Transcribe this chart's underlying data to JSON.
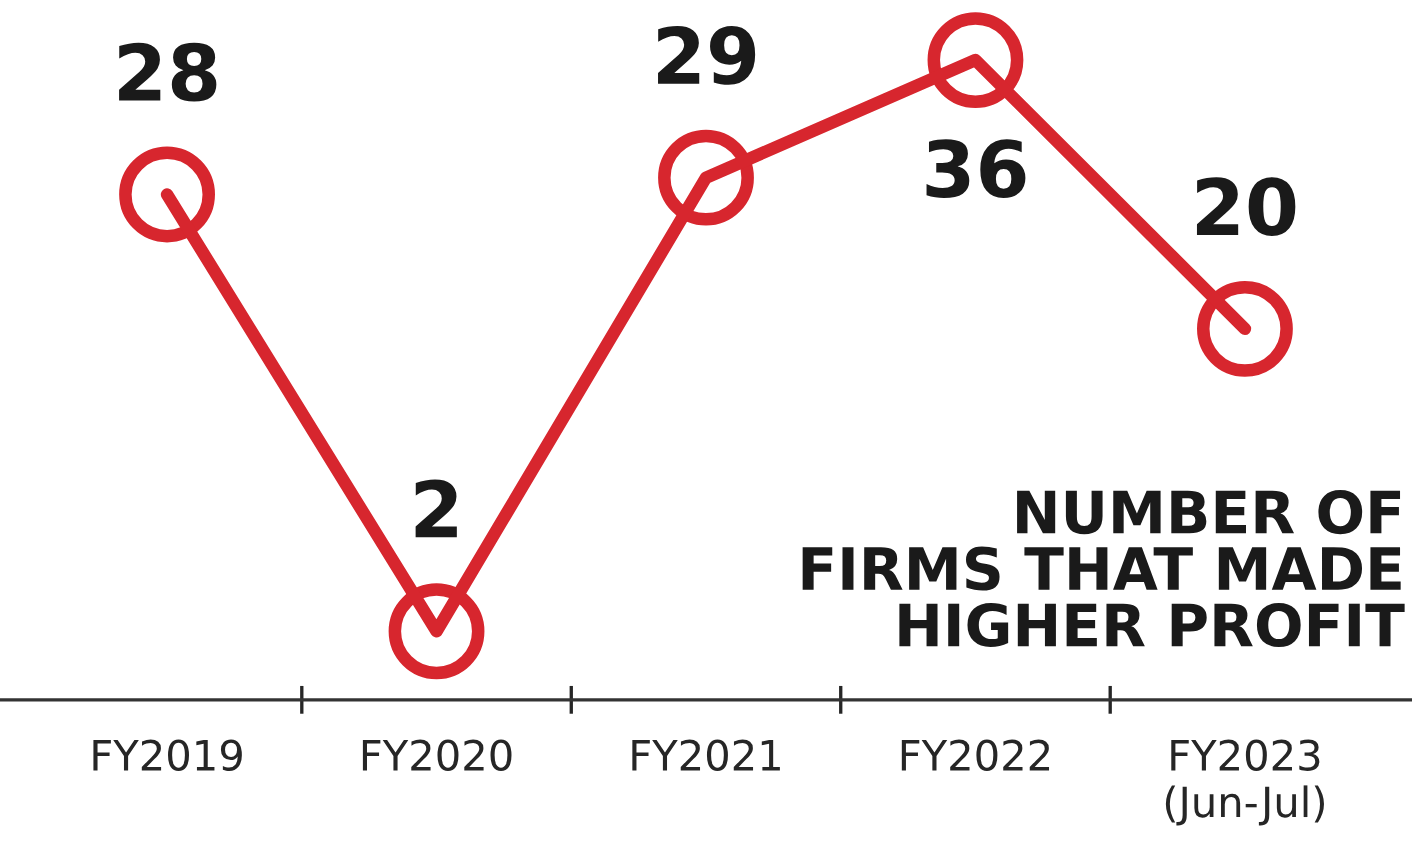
{
  "chart_data": {
    "type": "line",
    "title": "NUMBER OF\nFIRMS THAT MADE\nHIGHER PROFIT",
    "categories": [
      "FY2019",
      "FY2020",
      "FY2021",
      "FY2022",
      "FY2023\n(Jun-Jul)"
    ],
    "series": [
      {
        "color": "#d7262e",
        "values": [
          28,
          2,
          29,
          36,
          20
        ]
      }
    ],
    "data_labels": true,
    "marker": "circle",
    "line_style": "solid",
    "grid": false,
    "legend": false
  }
}
